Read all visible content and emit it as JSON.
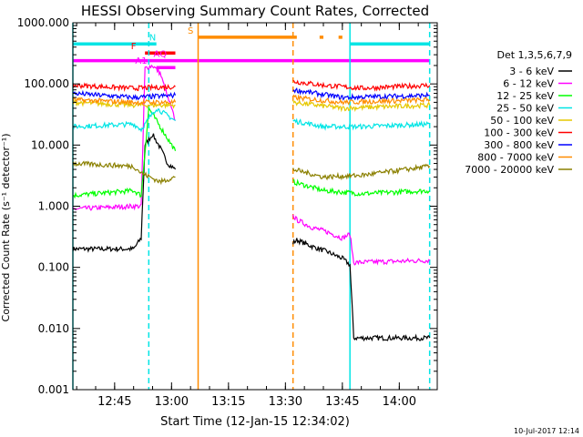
{
  "chart_data": {
    "type": "line",
    "title": "HESSI Observing Summary Count Rates, Corrected",
    "ylabel": "Corrected Count Rate (s⁻¹ detector⁻¹)",
    "xlabel": "Start Time (12-Jan-15 12:34:02)",
    "y_scale": "log",
    "ylim": [
      0.001,
      1000
    ],
    "xlim": [
      "12:34",
      "14:10"
    ],
    "y_ticks": [
      "1000.000",
      "100.000",
      "10.000",
      "1.000",
      "0.100",
      "0.010",
      "0.001"
    ],
    "x_ticks": [
      "12:45",
      "13:00",
      "13:15",
      "13:30",
      "13:45",
      "14:00"
    ],
    "timestamp": "10-Jul-2017 12:14",
    "legend_position": "right",
    "legend": {
      "title": "Det 1,3,5,6,7,9",
      "entries": [
        {
          "label": "3 - 6 keV",
          "color": "#000000"
        },
        {
          "label": "6 - 12 keV",
          "color": "#ff00ff"
        },
        {
          "label": "12 - 25 keV",
          "color": "#00ff00"
        },
        {
          "label": "25 - 50 keV",
          "color": "#00e5e5"
        },
        {
          "label": "50 - 100 keV",
          "color": "#e6c800"
        },
        {
          "label": "100 - 300 keV",
          "color": "#ff0000"
        },
        {
          "label": "300 - 800 keV",
          "color": "#0000ff"
        },
        {
          "label": "800 - 7000 keV",
          "color": "#ff8c00"
        },
        {
          "label": "7000 - 20000 keV",
          "color": "#8b8000"
        }
      ]
    },
    "series": [
      {
        "name": "3 - 6 keV",
        "color": "#000000",
        "segments": [
          {
            "x": [
              "12:34",
              "12:50",
              "12:52",
              "12:53",
              "12:55",
              "12:57",
              "12:59",
              "13:01"
            ],
            "y": [
              0.2,
              0.2,
              0.3,
              10,
              15,
              9,
              5,
              4
            ]
          },
          {
            "x": [
              "13:32",
              "13:33",
              "13:37",
              "13:41",
              "13:45",
              "13:47",
              "13:48",
              "14:08"
            ],
            "y": [
              0.25,
              0.28,
              0.22,
              0.18,
              0.14,
              0.11,
              0.007,
              0.007
            ]
          }
        ]
      },
      {
        "name": "6 - 12 keV",
        "color": "#ff00ff",
        "segments": [
          {
            "x": [
              "12:34",
              "12:50",
              "12:52",
              "12:53",
              "12:55",
              "12:57",
              "12:59",
              "13:01"
            ],
            "y": [
              0.9,
              1.0,
              1.0,
              180,
              200,
              150,
              60,
              25
            ]
          },
          {
            "x": [
              "13:32",
              "13:33",
              "13:37",
              "13:41",
              "13:45",
              "13:47",
              "13:48",
              "14:08"
            ],
            "y": [
              0.7,
              0.6,
              0.45,
              0.38,
              0.3,
              0.35,
              0.12,
              0.13
            ]
          }
        ]
      },
      {
        "name": "12 - 25 keV",
        "color": "#00ff00",
        "segments": [
          {
            "x": [
              "12:34",
              "12:50",
              "12:52",
              "12:54",
              "12:57",
              "13:01"
            ],
            "y": [
              1.5,
              1.8,
              1.5,
              40,
              20,
              8
            ]
          },
          {
            "x": [
              "13:32",
              "13:40",
              "13:50",
              "14:08"
            ],
            "y": [
              2.5,
              1.8,
              1.6,
              1.8
            ]
          }
        ]
      },
      {
        "name": "25 - 50 keV",
        "color": "#00e5e5",
        "segments": [
          {
            "x": [
              "12:34",
              "12:50",
              "12:52",
              "12:56",
              "13:01"
            ],
            "y": [
              20,
              22,
              18,
              40,
              25
            ]
          },
          {
            "x": [
              "13:32",
              "13:40",
              "13:50",
              "14:08"
            ],
            "y": [
              25,
              20,
              20,
              22
            ]
          }
        ]
      },
      {
        "name": "50 - 100 keV",
        "color": "#e6c800",
        "segments": [
          {
            "x": [
              "12:34",
              "12:50",
              "13:01"
            ],
            "y": [
              50,
              45,
              45
            ]
          },
          {
            "x": [
              "13:32",
              "13:45",
              "14:08"
            ],
            "y": [
              50,
              40,
              45
            ]
          }
        ]
      },
      {
        "name": "100 - 300 keV",
        "color": "#ff0000",
        "segments": [
          {
            "x": [
              "12:34",
              "12:50",
              "13:01"
            ],
            "y": [
              95,
              85,
              90
            ]
          },
          {
            "x": [
              "13:32",
              "13:40",
              "13:50",
              "14:08"
            ],
            "y": [
              110,
              95,
              85,
              95
            ]
          }
        ]
      },
      {
        "name": "300 - 800 keV",
        "color": "#0000ff",
        "segments": [
          {
            "x": [
              "12:34",
              "12:50",
              "13:01"
            ],
            "y": [
              70,
              60,
              65
            ]
          },
          {
            "x": [
              "13:32",
              "13:45",
              "14:08"
            ],
            "y": [
              80,
              60,
              65
            ]
          }
        ]
      },
      {
        "name": "800 - 7000 keV",
        "color": "#ff8c00",
        "segments": [
          {
            "x": [
              "12:34",
              "12:50",
              "13:01"
            ],
            "y": [
              55,
              50,
              50
            ]
          },
          {
            "x": [
              "13:32",
              "13:45",
              "14:08"
            ],
            "y": [
              60,
              50,
              55
            ]
          }
        ]
      },
      {
        "name": "7000 - 20000 keV",
        "color": "#8b8000",
        "segments": [
          {
            "x": [
              "12:34",
              "12:50",
              "12:52",
              "12:57",
              "13:01"
            ],
            "y": [
              5,
              4.5,
              3.5,
              2.5,
              3
            ]
          },
          {
            "x": [
              "13:32",
              "13:40",
              "13:50",
              "14:08"
            ],
            "y": [
              4,
              3,
              3.2,
              4.5
            ]
          }
        ]
      }
    ],
    "flag_bars": [
      {
        "label": "",
        "color": "#00e5e5",
        "y": 450,
        "x": [
          [
            "12:34",
            "12:56"
          ],
          [
            "13:47",
            "14:08"
          ]
        ]
      },
      {
        "label": "N",
        "color": "#00e5e5",
        "label_x": "12:55",
        "y": 450,
        "x": []
      },
      {
        "label": "S",
        "color": "#ff8c00",
        "label_x": "13:05",
        "y": 580,
        "x": [
          [
            "13:07",
            "13:33"
          ],
          [
            "13:39",
            "13:40"
          ],
          [
            "13:44",
            "13:45"
          ]
        ]
      },
      {
        "label": "F",
        "color": "#ff0000",
        "label_x": "12:50",
        "y": 320,
        "x": [
          [
            "12:53",
            "13:01"
          ]
        ]
      },
      {
        "label": "AQ",
        "color": "#ff00ff",
        "label_x": "12:57",
        "y": 240,
        "x": [
          [
            "12:34",
            "14:08"
          ]
        ]
      },
      {
        "label": "A1",
        "color": "#ff00ff",
        "label_x": "12:52",
        "y": 185,
        "x": [
          [
            "12:56",
            "13:01"
          ]
        ]
      }
    ],
    "vertical_markers": [
      {
        "x": "12:34",
        "color": "#00e5e5",
        "style": "solid"
      },
      {
        "x": "12:54",
        "color": "#00e5e5",
        "style": "dashed"
      },
      {
        "x": "13:07",
        "color": "#ff8c00",
        "style": "solid"
      },
      {
        "x": "13:32",
        "color": "#ff8c00",
        "style": "dashed"
      },
      {
        "x": "13:47",
        "color": "#00e5e5",
        "style": "solid"
      },
      {
        "x": "14:08",
        "color": "#00e5e5",
        "style": "dashed"
      }
    ]
  }
}
